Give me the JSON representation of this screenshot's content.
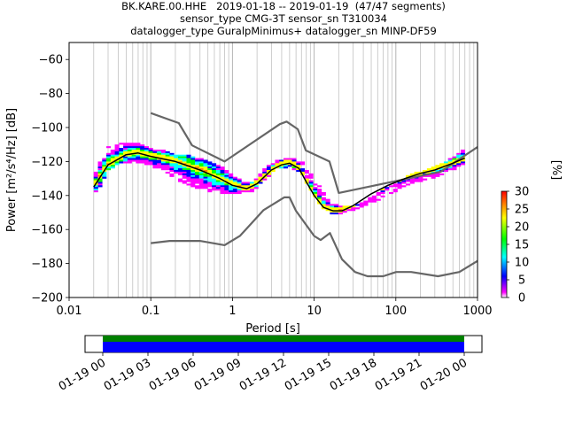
{
  "header": {
    "line1": "BK.KARE.00.HHE   2019-01-18 -- 2019-01-19  (47/47 segments)",
    "line2": "sensor_type CMG-3T sensor_sn T310034",
    "line3": "datalogger_type GuralpMinimus+ datalogger_sn MINP-DF59"
  },
  "chart_data": [
    {
      "type": "heatmap",
      "xlabel": "Period [s]",
      "ylabel": "Power [m²/s⁴/Hz] [dB]",
      "xscale": "log",
      "xlim": [
        0.01,
        1000
      ],
      "ylim": [
        -200,
        -50
      ],
      "x_ticks": [
        {
          "value": 0.01,
          "label": "0.01"
        },
        {
          "value": 0.1,
          "label": "0.1"
        },
        {
          "value": 1,
          "label": "1"
        },
        {
          "value": 10,
          "label": "10"
        },
        {
          "value": 100,
          "label": "100"
        },
        {
          "value": 1000,
          "label": "1000"
        }
      ],
      "y_ticks": [
        {
          "value": -60,
          "label": "−60"
        },
        {
          "value": -80,
          "label": "−80"
        },
        {
          "value": -100,
          "label": "−100"
        },
        {
          "value": -120,
          "label": "−120"
        },
        {
          "value": -140,
          "label": "−140"
        },
        {
          "value": -160,
          "label": "−160"
        },
        {
          "value": -180,
          "label": "−180"
        },
        {
          "value": -200,
          "label": "−200"
        }
      ],
      "grid": "vertical-log",
      "colorbar": {
        "label": "[%]",
        "range": [
          0,
          30
        ],
        "ticks": [
          {
            "value": 0,
            "label": "0"
          },
          {
            "value": 5,
            "label": "5"
          },
          {
            "value": 10,
            "label": "10"
          },
          {
            "value": 15,
            "label": "15"
          },
          {
            "value": 20,
            "label": "20"
          },
          {
            "value": 25,
            "label": "25"
          },
          {
            "value": 30,
            "label": "30"
          }
        ],
        "colors": [
          "#ffffff",
          "#ff00ff",
          "#0000ff",
          "#00ffff",
          "#00ff00",
          "#ffff00",
          "#ff8000",
          "#ff0000"
        ]
      },
      "noise_models": [
        {
          "periods": [
            0.1,
            0.22,
            0.32,
            0.8,
            3.8,
            4.6,
            6.3,
            7.9,
            15.4,
            20,
            354,
            1000
          ],
          "values": [
            -91.5,
            -97.4,
            -110.5,
            -120,
            -98,
            -96.5,
            -101,
            -113.5,
            -120,
            -138.5,
            -126,
            -111.5
          ]
        },
        {
          "periods": [
            0.1,
            0.17,
            0.4,
            0.8,
            1.24,
            2.4,
            4.3,
            5,
            6,
            10,
            12,
            15.6,
            21.9,
            31.6,
            45,
            70,
            101,
            154,
            328,
            600,
            1000
          ],
          "values": [
            -168,
            -166.7,
            -166.7,
            -169.2,
            -163.7,
            -148.6,
            -141.1,
            -141.1,
            -149,
            -163.8,
            -166.2,
            -162.1,
            -177.5,
            -185,
            -187.5,
            -187.5,
            -185,
            -185,
            -187.5,
            -185,
            -178.5
          ]
        }
      ],
      "mode": {
        "periods": [
          0.02,
          0.03,
          0.05,
          0.07,
          0.1,
          0.2,
          0.4,
          0.7,
          1.0,
          1.5,
          2.0,
          3.0,
          4.0,
          5.0,
          6.5,
          8.0,
          10,
          13,
          17,
          22,
          30,
          50,
          80,
          130,
          200,
          300,
          500,
          700
        ],
        "values": [
          -135,
          -122,
          -116,
          -115,
          -117,
          -120,
          -125,
          -130,
          -134,
          -136,
          -133,
          -125,
          -122,
          -121,
          -124,
          -132,
          -140,
          -147,
          -149,
          -149,
          -146,
          -139,
          -134,
          -130,
          -127,
          -125,
          -121,
          -118
        ]
      },
      "psd_spread": {
        "periods": [
          0.02,
          0.025,
          0.03,
          0.04,
          0.05,
          0.07,
          0.1,
          0.15,
          0.2,
          0.3,
          0.5,
          0.7,
          1.0,
          1.3,
          1.8,
          2.5,
          3.5,
          5,
          7,
          9,
          12,
          16,
          22,
          30,
          45,
          70,
          100,
          150,
          250,
          400,
          700
        ],
        "upper": [
          -128,
          -118,
          -112,
          -110,
          -110,
          -110,
          -113,
          -114,
          -116,
          -117,
          -120,
          -123,
          -128,
          -132,
          -133,
          -124,
          -119,
          -118,
          -120,
          -127,
          -136,
          -145,
          -147,
          -147,
          -143,
          -136,
          -133,
          -128,
          -125,
          -121,
          -113
        ],
        "lower": [
          -140,
          -134,
          -126,
          -122,
          -121,
          -121,
          -123,
          -127,
          -131,
          -135,
          -138,
          -139,
          -140,
          -139,
          -138,
          -131,
          -125,
          -124,
          -128,
          -137,
          -147,
          -151,
          -152,
          -150,
          -146,
          -142,
          -138,
          -134,
          -131,
          -128,
          -122
        ]
      }
    },
    {
      "type": "timeline",
      "tick_labels": [
        "01-19 00",
        "01-19 03",
        "01-19 06",
        "01-19 09",
        "01-19 12",
        "01-19 15",
        "01-19 18",
        "01-19 21",
        "01-20 00"
      ],
      "coverage_colors": [
        "#008000",
        "#0000ff"
      ]
    }
  ]
}
